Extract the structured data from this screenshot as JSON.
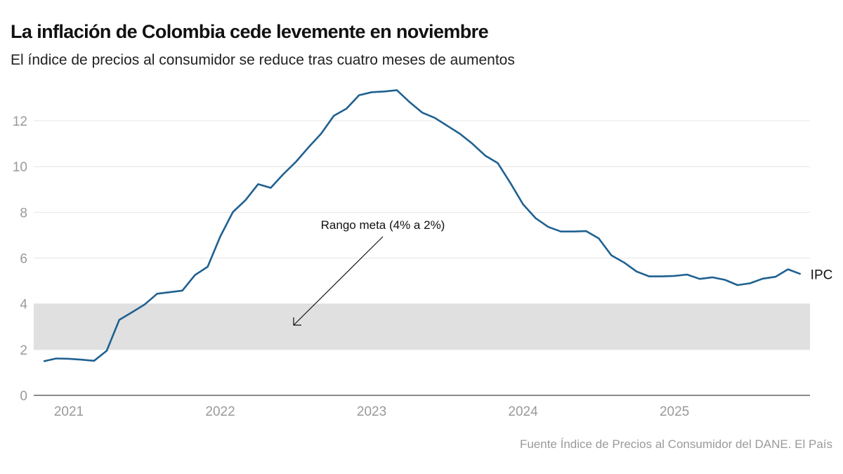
{
  "chart_data": {
    "type": "line",
    "title": "La inflación de Colombia cede levemente en noviembre",
    "subtitle": "El índice de precios al consumidor se reduce tras cuatro meses de aumentos",
    "source": "Fuente Índice de Precios al Consumidor del DANE. El País",
    "xlabel": "",
    "ylabel": "",
    "ylim": [
      0,
      13.5
    ],
    "yticks": [
      0,
      2,
      4,
      6,
      8,
      10,
      12
    ],
    "xticks": [
      "2021",
      "2022",
      "2023",
      "2024",
      "2025"
    ],
    "grid": true,
    "line_color": "#1f6191",
    "band_color": "#e0e0e0",
    "target_band": {
      "low": 2,
      "high": 4,
      "label": "Rango meta (4% a 2%)"
    },
    "series": [
      {
        "name": "IPC",
        "x": [
          "2020-11",
          "2020-12",
          "2021-01",
          "2021-02",
          "2021-03",
          "2021-04",
          "2021-05",
          "2021-06",
          "2021-07",
          "2021-08",
          "2021-09",
          "2021-10",
          "2021-11",
          "2021-12",
          "2022-01",
          "2022-02",
          "2022-03",
          "2022-04",
          "2022-05",
          "2022-06",
          "2022-07",
          "2022-08",
          "2022-09",
          "2022-10",
          "2022-11",
          "2022-12",
          "2023-01",
          "2023-02",
          "2023-03",
          "2023-04",
          "2023-05",
          "2023-06",
          "2023-07",
          "2023-08",
          "2023-09",
          "2023-10",
          "2023-11",
          "2023-12",
          "2024-01",
          "2024-02",
          "2024-03",
          "2024-04",
          "2024-05",
          "2024-06",
          "2024-07",
          "2024-08",
          "2024-09",
          "2024-10",
          "2024-11",
          "2024-12",
          "2025-01",
          "2025-02",
          "2025-03",
          "2025-04",
          "2025-05",
          "2025-06",
          "2025-07",
          "2025-08",
          "2025-09",
          "2025-10",
          "2025-11"
        ],
        "values": [
          1.49,
          1.61,
          1.6,
          1.56,
          1.51,
          1.95,
          3.3,
          3.63,
          3.97,
          4.44,
          4.51,
          4.58,
          5.26,
          5.62,
          6.94,
          8.01,
          8.53,
          9.23,
          9.07,
          9.67,
          10.21,
          10.84,
          11.44,
          12.22,
          12.53,
          13.12,
          13.25,
          13.28,
          13.34,
          12.82,
          12.36,
          12.13,
          11.78,
          11.43,
          10.99,
          10.48,
          10.15,
          9.28,
          8.35,
          7.74,
          7.36,
          7.16,
          7.16,
          7.18,
          6.86,
          6.12,
          5.81,
          5.41,
          5.2,
          5.2,
          5.22,
          5.28,
          5.09,
          5.16,
          5.05,
          4.82,
          4.9,
          5.1,
          5.18,
          5.51,
          5.3
        ]
      }
    ]
  }
}
